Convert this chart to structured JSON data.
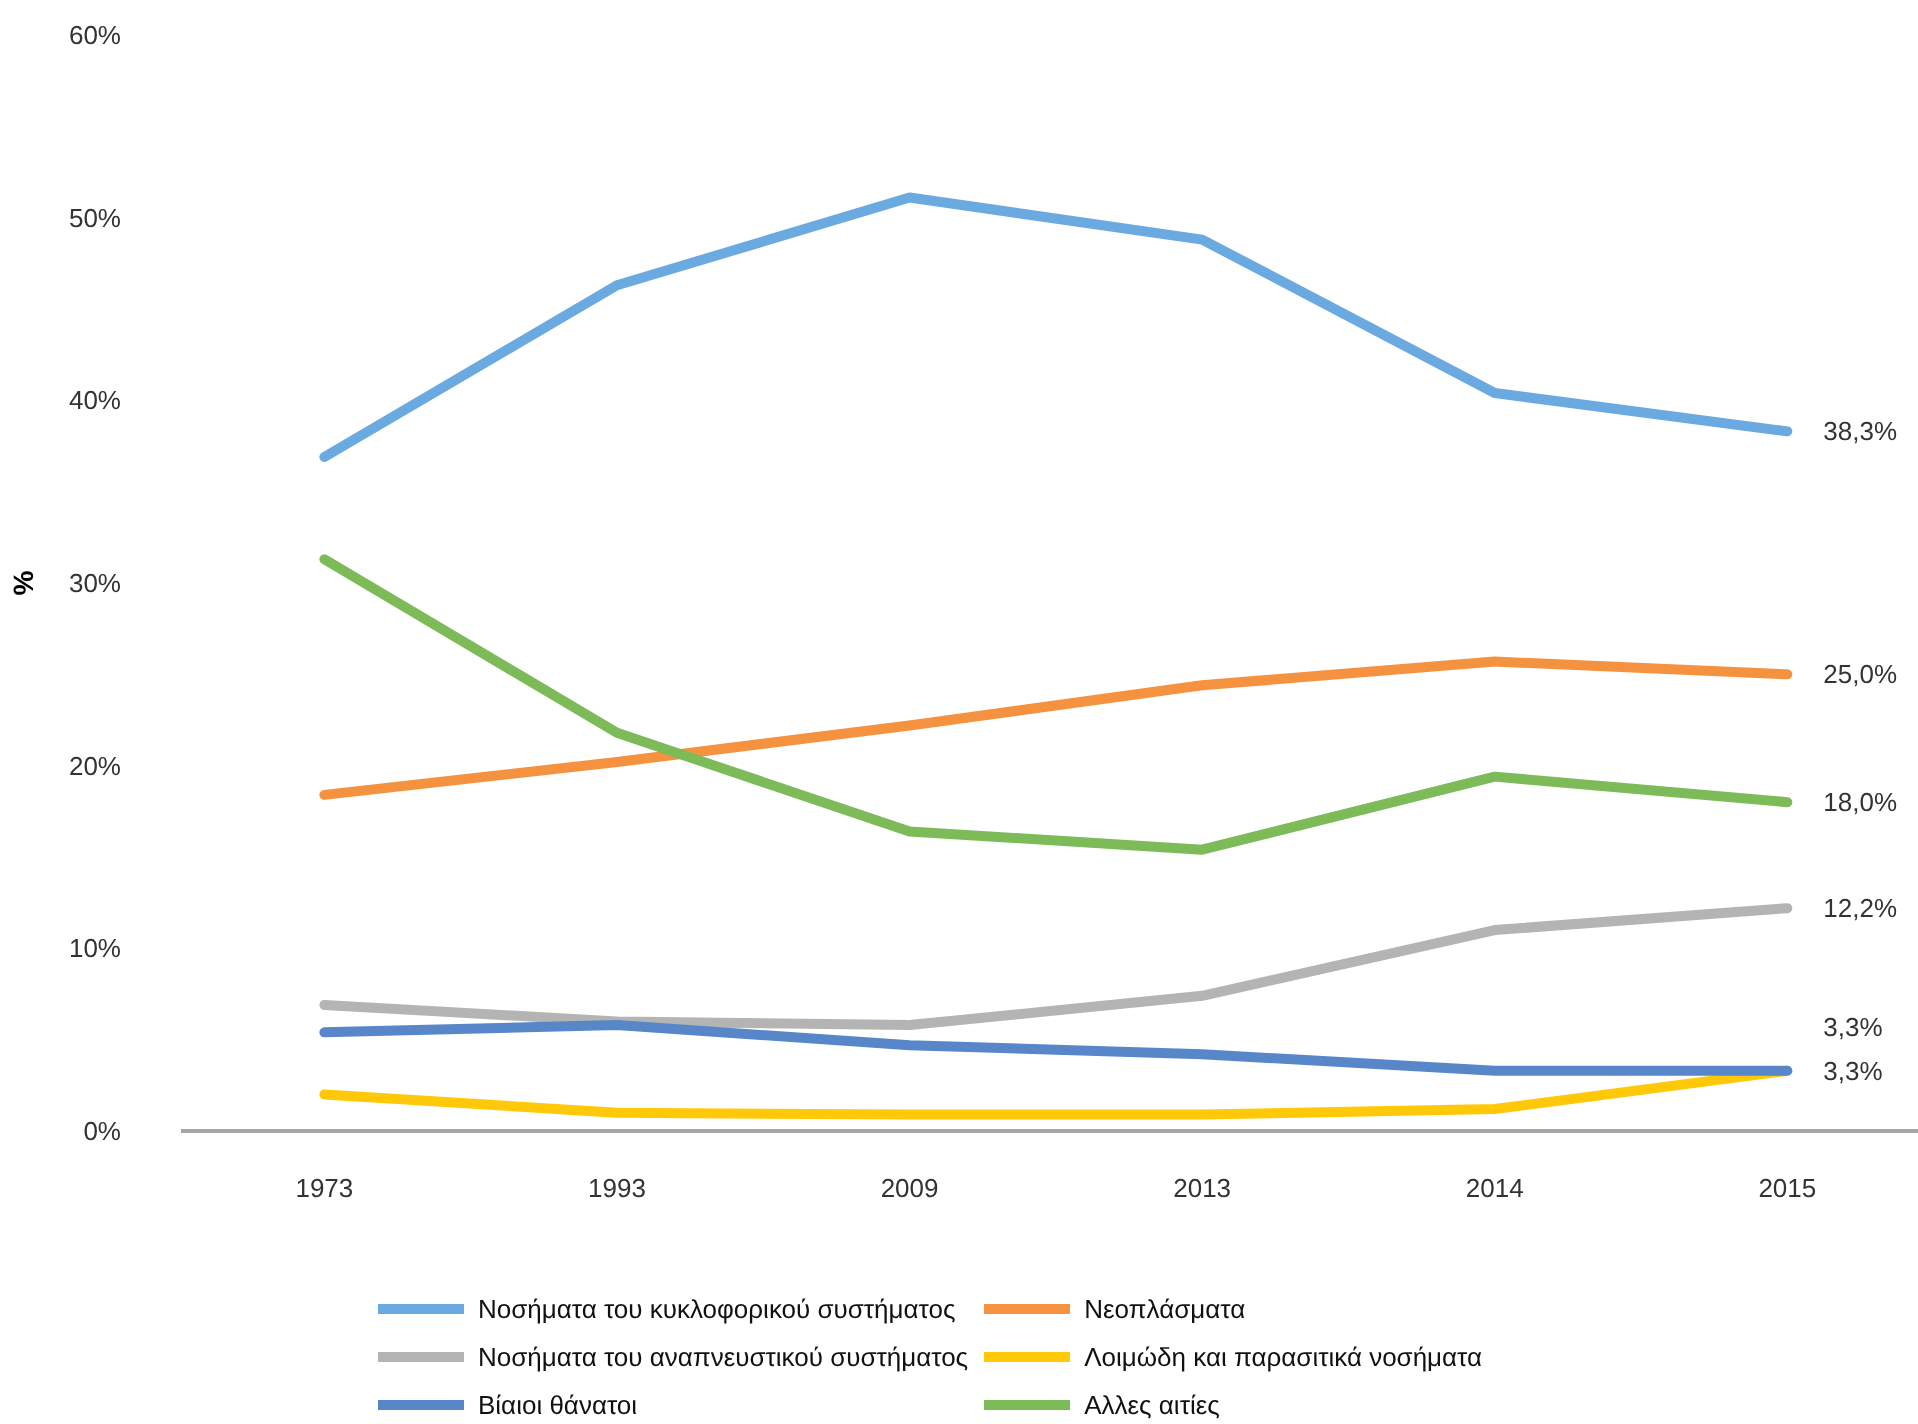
{
  "chart_data": {
    "type": "line",
    "ylabel": "%",
    "categories": [
      "1973",
      "1993",
      "2009",
      "2013",
      "2014",
      "2015"
    ],
    "ylim": [
      0,
      60
    ],
    "yticks": [
      {
        "value": 0,
        "label": "0%"
      },
      {
        "value": 10,
        "label": "10%"
      },
      {
        "value": 20,
        "label": "20%"
      },
      {
        "value": 30,
        "label": "30%"
      },
      {
        "value": 40,
        "label": "40%"
      },
      {
        "value": 50,
        "label": "50%"
      },
      {
        "value": 60,
        "label": "60%"
      }
    ],
    "grid": false,
    "legend": "bottom",
    "line_style": "solid",
    "series": [
      {
        "name": "Νοσήματα του κυκλοφορικού συστήματος",
        "color": "#6aaae0",
        "values": [
          36.9,
          46.3,
          51.1,
          48.8,
          40.4,
          38.3
        ],
        "value_labels": [
          null,
          null,
          null,
          null,
          null,
          "38,3%"
        ]
      },
      {
        "name": "Νεοπλάσματα",
        "color": "#f4923f",
        "values": [
          18.4,
          20.2,
          22.2,
          24.4,
          25.7,
          25.0
        ],
        "value_labels": [
          null,
          null,
          null,
          null,
          null,
          "25,0%"
        ]
      },
      {
        "name": "Νοσήματα του αναπνευστικού συστήματος",
        "color": "#b4b4b4",
        "values": [
          6.9,
          6.0,
          5.8,
          7.4,
          11.0,
          12.2
        ],
        "value_labels": [
          null,
          null,
          null,
          null,
          null,
          "12,2%"
        ]
      },
      {
        "name": "Λοιμώδη και παρασιτικά νοσήματα",
        "color": "#ffc90a",
        "values": [
          2.0,
          1.0,
          0.9,
          0.9,
          1.2,
          3.3
        ],
        "value_labels": [
          null,
          null,
          null,
          null,
          null,
          "3,3%"
        ]
      },
      {
        "name": "Βίαιοι θάνατοι",
        "color": "#5787c8",
        "values": [
          5.4,
          5.8,
          4.7,
          4.2,
          3.3,
          3.3
        ],
        "value_labels": [
          null,
          null,
          null,
          null,
          null,
          "3,3%"
        ]
      },
      {
        "name": "Αλλες αιτίες",
        "color": "#7dba58",
        "values": [
          31.3,
          21.8,
          16.4,
          15.4,
          19.4,
          18.0
        ],
        "value_labels": [
          null,
          null,
          null,
          null,
          null,
          "18,0%"
        ]
      }
    ]
  }
}
